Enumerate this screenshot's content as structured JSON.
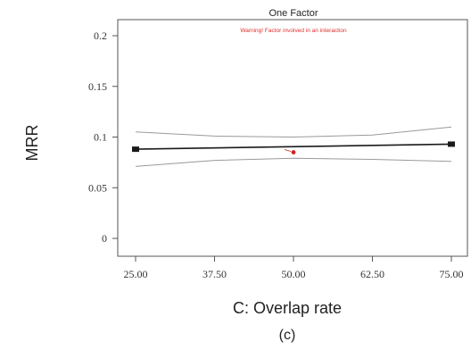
{
  "chart_data": {
    "type": "line",
    "title": "One Factor",
    "warning": "Warning! Factor involved in an interaction",
    "xlabel": "C: Overlap rate",
    "ylabel": "MRR",
    "caption": "(c)",
    "xlim": [
      25,
      75
    ],
    "ylim": [
      0,
      0.2
    ],
    "x_ticks": [
      "25.00",
      "37.50",
      "50.00",
      "62.50",
      "75.00"
    ],
    "x_tick_values": [
      25,
      37.5,
      50,
      62.5,
      75
    ],
    "y_ticks": [
      "0",
      "0.05",
      "0.1",
      "0.15",
      "0.2"
    ],
    "y_tick_values": [
      0,
      0.05,
      0.1,
      0.15,
      0.2
    ],
    "series": [
      {
        "role": "prediction",
        "x": [
          25,
          75
        ],
        "y": [
          0.088,
          0.093
        ]
      },
      {
        "role": "upper-band",
        "x": [
          25,
          37.5,
          50,
          62.5,
          75
        ],
        "y": [
          0.105,
          0.101,
          0.1,
          0.102,
          0.11
        ]
      },
      {
        "role": "lower-band",
        "x": [
          25,
          37.5,
          50,
          62.5,
          75
        ],
        "y": [
          0.071,
          0.077,
          0.079,
          0.078,
          0.076
        ]
      }
    ],
    "design_points": [
      {
        "x": 25,
        "y": 0.088
      },
      {
        "x": 75,
        "y": 0.093
      }
    ],
    "marker": {
      "x": 50,
      "y": 0.085
    },
    "colors": {
      "line": "#1a1a1a",
      "band": "#9a9a9a",
      "axis": "#555555",
      "warning": "#e0302c",
      "marker": "#d42020"
    }
  }
}
